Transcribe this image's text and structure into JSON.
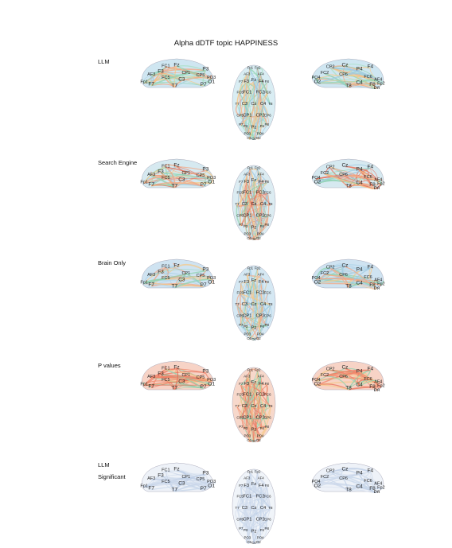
{
  "title": "Alpha dDTF topic HAPPINESS",
  "rows": [
    {
      "label": "LLM",
      "label2": "",
      "palette": [
        "#8fd3b0",
        "#a8dfc4",
        "#f4a582",
        "#9ec9e2",
        "#f6c98a"
      ],
      "heads": {
        "left": "#cfe6f1",
        "top": "#d9edf3",
        "right": "#cfe6f1"
      }
    },
    {
      "label": "Search Engine",
      "label2": "",
      "palette": [
        "#f4a582",
        "#e8705a",
        "#f6c98a",
        "#8fd3b0",
        "#9ec9e2"
      ],
      "heads": {
        "left": "#d6e9f0",
        "top": "#dcecf2",
        "right": "#d6e9f0"
      }
    },
    {
      "label": "Brain Only",
      "label2": "",
      "palette": [
        "#9ec9e2",
        "#b3d6ea",
        "#f6c98a",
        "#8fd3b0",
        "#f4a582"
      ],
      "heads": {
        "left": "#cfe3f1",
        "top": "#d5e8f3",
        "right": "#cfe3f1"
      }
    },
    {
      "label": "P values",
      "label2": "",
      "palette": [
        "#e8705a",
        "#f4a582",
        "#f0846a",
        "#f6c98a",
        "#8fd3b0"
      ],
      "heads": {
        "left": "#f7d3c6",
        "top": "#f7d8cb",
        "right": "#f7d3c6"
      }
    },
    {
      "label": "LLM",
      "label2": "Significant",
      "palette": [
        "#c5d5ea",
        "#d2ddee",
        "#b9cbe4",
        "#dbe3f0",
        "#c9d6ea"
      ],
      "heads": {
        "left": "#eef2f8",
        "top": "#f0f4f9",
        "right": "#eef2f8"
      }
    }
  ],
  "electrodes": {
    "left": [
      "FC1",
      "F3",
      "FC5",
      "AF3",
      "Fp1",
      "F7",
      "T7",
      "CP5",
      "CP1",
      "P3",
      "P7",
      "PO3",
      "O1",
      "C3",
      "Fz"
    ],
    "top": [
      "Fp1",
      "Fp2",
      "AF3",
      "AF4",
      "F7",
      "F3",
      "Fz",
      "F4",
      "F8",
      "FC5",
      "FC1",
      "FC2",
      "FC6",
      "T7",
      "C3",
      "Cz",
      "C4",
      "T8",
      "CP5",
      "CP1",
      "CP2",
      "CP6",
      "P7",
      "P3",
      "Pz",
      "P4",
      "P8",
      "PO3",
      "PO4",
      "O1",
      "Oz",
      "O2"
    ],
    "right": [
      "CP2",
      "Cz",
      "FC2",
      "P4",
      "CP6",
      "FC6",
      "PO4",
      "F4",
      "O2",
      "T8",
      "F8",
      "AF4",
      "Fp2",
      "P8",
      "C4"
    ]
  }
}
